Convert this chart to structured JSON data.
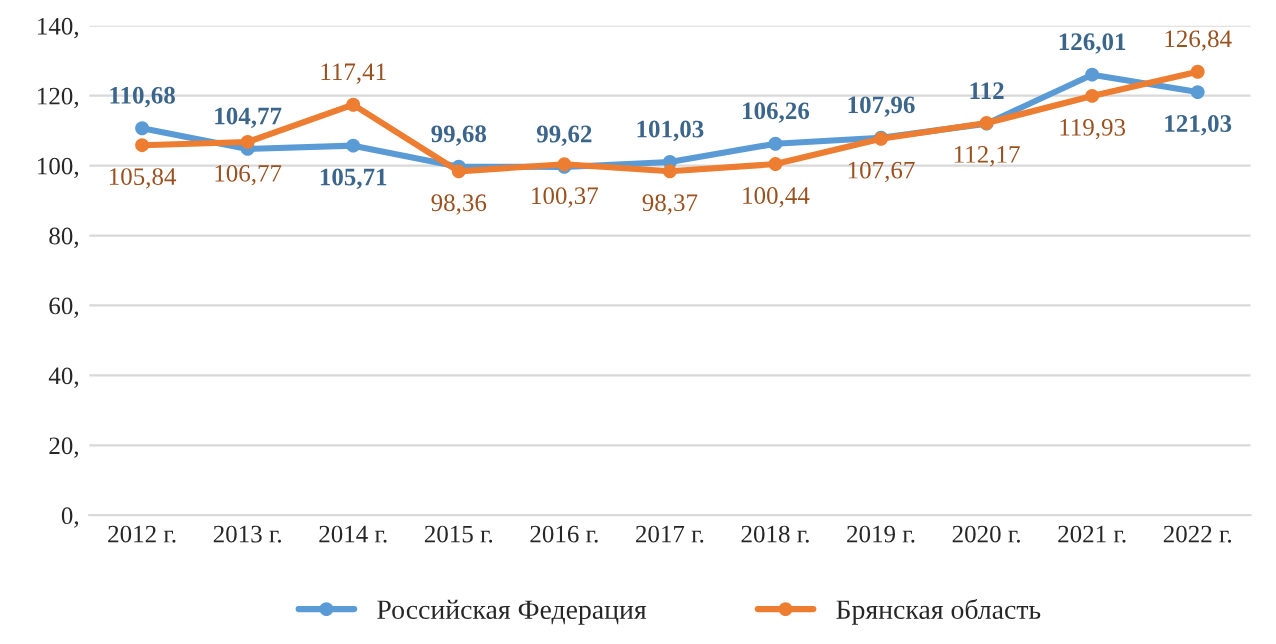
{
  "chart_data": {
    "type": "line",
    "categories": [
      "2012 г.",
      "2013 г.",
      "2014 г.",
      "2015 г.",
      "2016 г.",
      "2017 г.",
      "2018 г.",
      "2019 г.",
      "2020 г.",
      "2021 г.",
      "2022 г."
    ],
    "series": [
      {
        "name": "Российская Федерация",
        "color": "#5b9bd5",
        "values": [
          110.68,
          104.77,
          105.71,
          99.68,
          99.62,
          101.03,
          106.26,
          107.96,
          112,
          126.01,
          121.03
        ],
        "value_labels": [
          "110,68",
          "104,77",
          "105,71",
          "99,68",
          "99,62",
          "101,03",
          "106,26",
          "107,96",
          "112",
          "126,01",
          "121,03"
        ]
      },
      {
        "name": "Брянская область",
        "color": "#ed7d31",
        "values": [
          105.84,
          106.77,
          117.41,
          98.36,
          100.37,
          98.37,
          100.44,
          107.67,
          112.17,
          119.93,
          126.84
        ],
        "value_labels": [
          "105,84",
          "106,77",
          "117,41",
          "98,36",
          "100,37",
          "98,37",
          "100,44",
          "107,67",
          "112,17",
          "119,93",
          "126,84"
        ]
      }
    ],
    "ylim": [
      0,
      140
    ],
    "yticks": [
      {
        "value": 0,
        "label": "0,"
      },
      {
        "value": 20,
        "label": "20,"
      },
      {
        "value": 40,
        "label": "40,"
      },
      {
        "value": 60,
        "label": "60,"
      },
      {
        "value": 80,
        "label": "80,"
      },
      {
        "value": 100,
        "label": "100,"
      },
      {
        "value": 120,
        "label": "120,"
      },
      {
        "value": 140,
        "label": "140,"
      }
    ],
    "grid": "y",
    "legend": "bottom",
    "marker": "circle",
    "line_style": "solid"
  }
}
